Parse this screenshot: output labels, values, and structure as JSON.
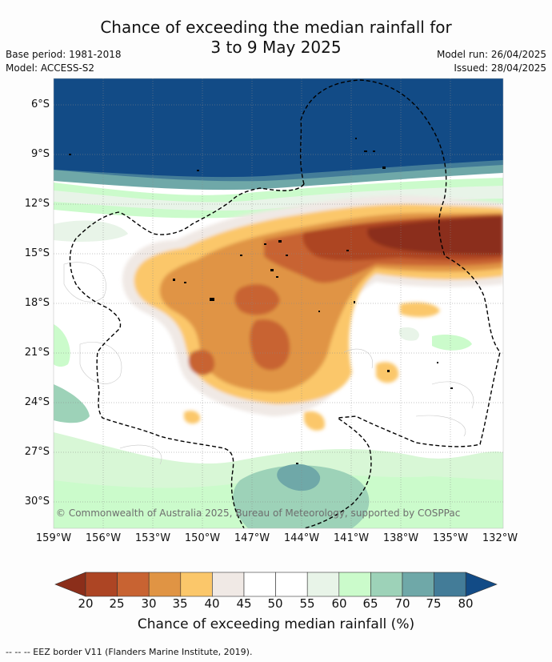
{
  "title_line1": "Chance of exceeding the median rainfall for",
  "title_line2": "3 to 9 May 2025",
  "base_period": "Base period: 1981-2018",
  "model": "Model: ACCESS-S2",
  "model_run": "Model run: 26/04/2025",
  "issued": "Issued: 28/04/2025",
  "lat_labels": [
    "6°S",
    "9°S",
    "12°S",
    "15°S",
    "18°S",
    "21°S",
    "24°S",
    "27°S",
    "30°S"
  ],
  "lon_labels": [
    "159°W",
    "156°W",
    "153°W",
    "150°W",
    "147°W",
    "144°W",
    "141°W",
    "138°W",
    "135°W",
    "132°W"
  ],
  "credit": "© Commonwealth of Australia 2025, Bureau of Meteorology, supported by COSPPac",
  "colorbar": {
    "ticks": [
      "20",
      "25",
      "30",
      "35",
      "40",
      "45",
      "50",
      "55",
      "60",
      "65",
      "70",
      "75",
      "80"
    ],
    "low_extend_color": "#8b2e1a",
    "high_extend_color": "#124b86",
    "bins": [
      {
        "range": "20-25",
        "color": "#ad4524"
      },
      {
        "range": "25-30",
        "color": "#c86332"
      },
      {
        "range": "30-35",
        "color": "#e09444"
      },
      {
        "range": "35-40",
        "color": "#fbc76a"
      },
      {
        "range": "40-45",
        "color": "#f0e9e5"
      },
      {
        "range": "45-50",
        "color": "#ffffff"
      },
      {
        "range": "50-55",
        "color": "#ffffff"
      },
      {
        "range": "55-60",
        "color": "#e8f4e8"
      },
      {
        "range": "60-65",
        "color": "#cbfbcb"
      },
      {
        "range": "65-70",
        "color": "#9dd2b8"
      },
      {
        "range": "70-75",
        "color": "#6fa8a8"
      },
      {
        "range": "75-80",
        "color": "#437c98"
      }
    ],
    "title": "Chance of exceeding median rainfall (%)"
  },
  "footer": "--  --  -- EEZ border V11 (Flanders Marine Institute, 2019)."
}
